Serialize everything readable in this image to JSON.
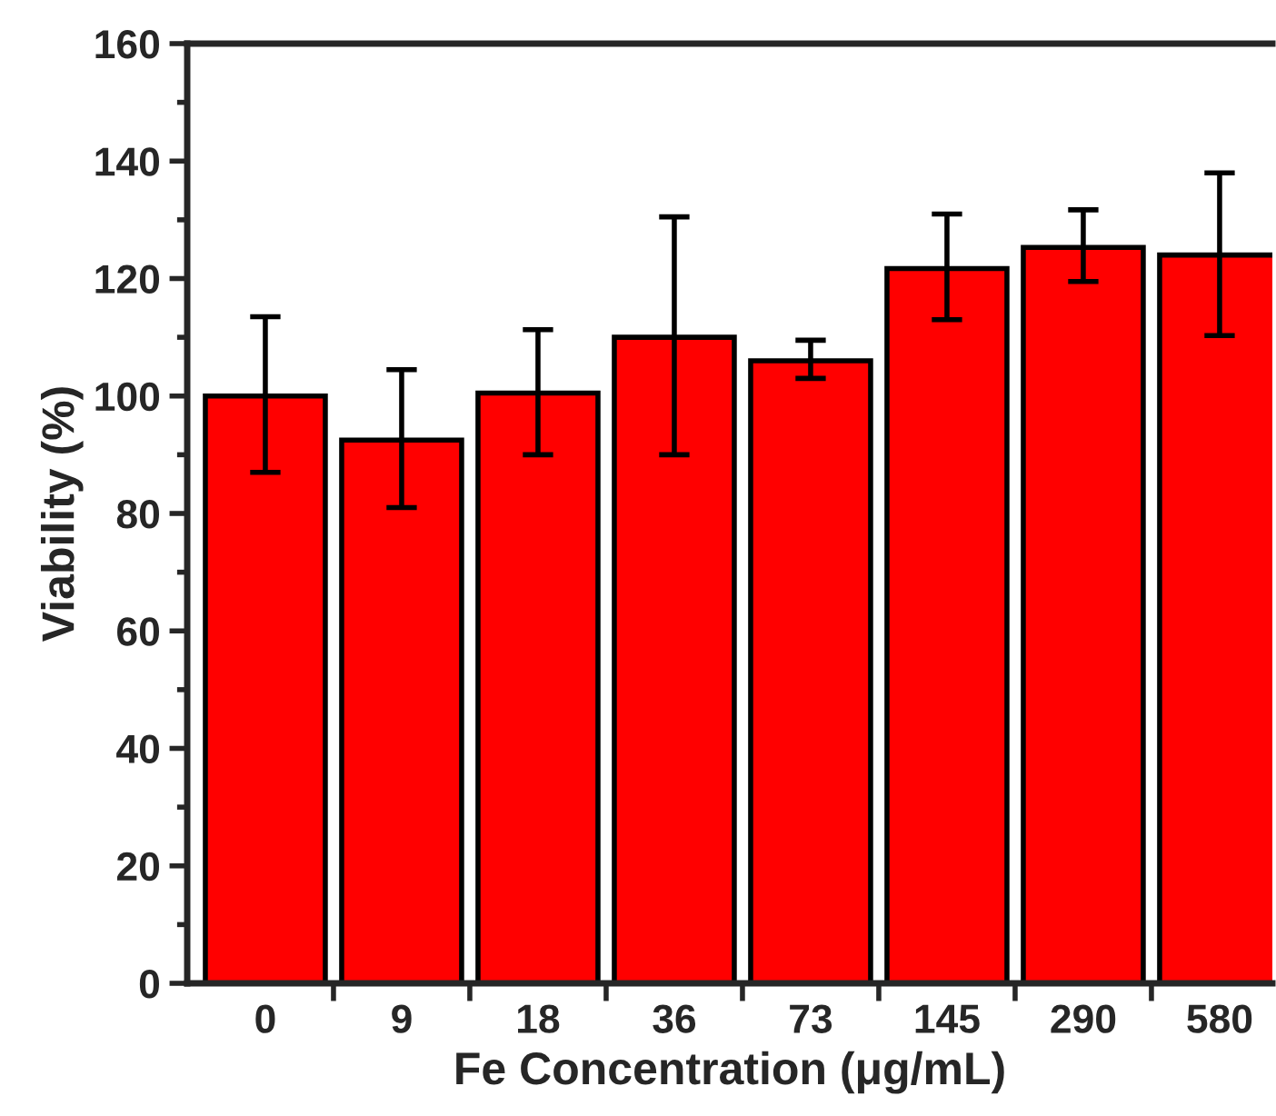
{
  "chart_data": {
    "type": "bar",
    "xlabel": "Fe Concentration (μg/mL)",
    "ylabel": "Viability (%)",
    "categories": [
      "0",
      "9",
      "18",
      "36",
      "73",
      "145",
      "290",
      "580"
    ],
    "series": [
      {
        "color": "#ff0000",
        "values": [
          100,
          92.5,
          100.5,
          110,
          106,
          121.7,
          125.3,
          124
        ],
        "errors": [
          [
            87,
            113.5
          ],
          [
            81,
            104.5
          ],
          [
            90,
            111.3
          ],
          [
            90,
            130.5
          ],
          [
            103,
            109.5
          ],
          [
            113,
            131
          ],
          [
            119.5,
            131.7
          ],
          [
            110.3,
            138
          ]
        ]
      }
    ],
    "ylim": [
      0,
      160
    ],
    "yticks": [
      0,
      20,
      40,
      60,
      80,
      100,
      120,
      140,
      160
    ],
    "grid": false,
    "legend": false
  }
}
